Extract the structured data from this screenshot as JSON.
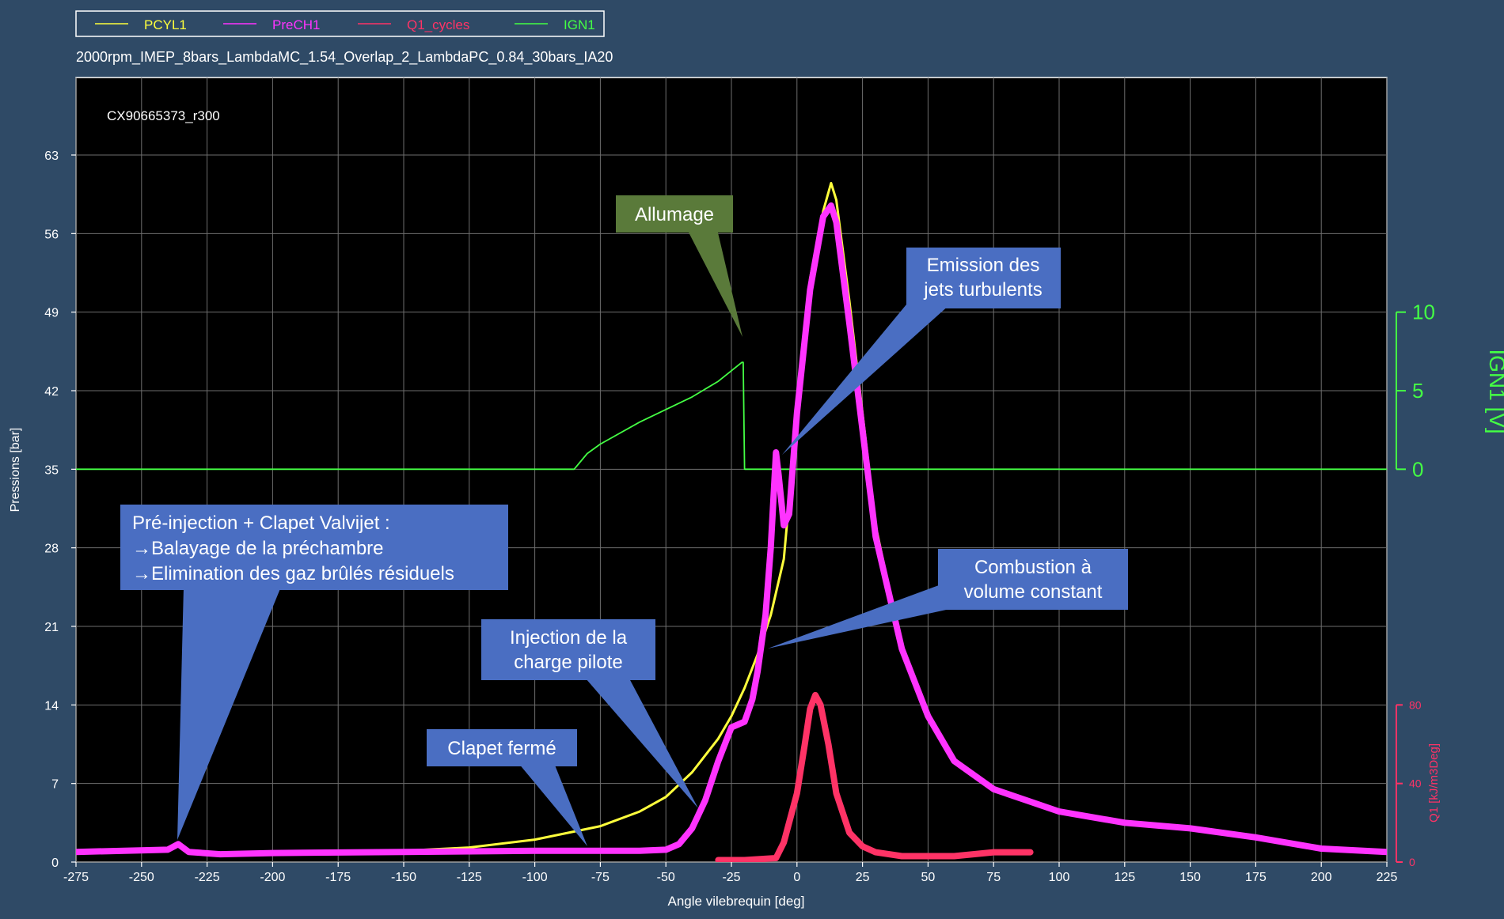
{
  "legend": [
    {
      "name": "PCYL1",
      "color": "#ffff3c"
    },
    {
      "name": "PreCH1",
      "color": "#ff33ff"
    },
    {
      "name": "Q1_cycles",
      "color": "#ff3366"
    },
    {
      "name": "IGN1",
      "color": "#44ff44"
    }
  ],
  "subtitle": "2000rpm_IMEP_8bars_LambdaMC_1.54_Overlap_2_LambdaPC_0.84_30bars_IA20",
  "run_id": "CX90665373_r300",
  "colors": {
    "background": "#2f4a66",
    "plot_bg": "#000000",
    "grid": "#6e6e6e",
    "pcyl": "#ffff3c",
    "prech": "#ff33ff",
    "q1": "#ff3366",
    "ign": "#44ff44",
    "callout_blue": "#4a6ec2",
    "callout_green": "#5a7a3a"
  },
  "annotations": {
    "allumage": "Allumage",
    "jets_line1": "Emission des",
    "jets_line2": "jets turbulents",
    "combustion_line1": "Combustion à",
    "combustion_line2": "volume constant",
    "pilote_line1": "Injection de la",
    "pilote_line2": "charge pilote",
    "clapet": "Clapet fermé",
    "preinj_line1": "Pré-injection + Clapet Valvijet :",
    "preinj_line2": "→Balayage de la préchambre",
    "preinj_line3": "→Elimination des gaz brûlés résiduels"
  },
  "chart_data": {
    "type": "line",
    "xlabel": "Angle vilebrequin [deg]",
    "ylabel": "Pressions [bar]",
    "xlim": [
      -275,
      225
    ],
    "ylim": [
      0,
      70
    ],
    "xticks": [
      -275,
      -250,
      -225,
      -200,
      -175,
      -150,
      -125,
      -100,
      -75,
      -50,
      -25,
      0,
      25,
      50,
      75,
      100,
      125,
      150,
      175,
      200,
      225
    ],
    "yticks": [
      0,
      7,
      14,
      21,
      28,
      35,
      42,
      49,
      56,
      63
    ],
    "y2": {
      "label": "IGN1 [V]",
      "ticks": [
        0,
        5,
        10
      ],
      "range_bar": [
        35,
        49
      ]
    },
    "y3": {
      "label": "Q1 [kJ/m3Deg]",
      "ticks": [
        0,
        40,
        80
      ],
      "range_bar": [
        0,
        14
      ]
    },
    "grid": true,
    "legend_position": "top-left",
    "series": [
      {
        "name": "PCYL1",
        "axis": "pressure",
        "x": [
          -275,
          -240,
          -236,
          -230,
          -220,
          -200,
          -150,
          -125,
          -100,
          -75,
          -60,
          -50,
          -40,
          -30,
          -25,
          -20,
          -15,
          -10,
          -5,
          0,
          5,
          10,
          13,
          15,
          20,
          25,
          30,
          40,
          50,
          60,
          75,
          100,
          125,
          150,
          175,
          200,
          225
        ],
        "y": [
          1.0,
          1.0,
          1.5,
          0.9,
          0.7,
          0.8,
          1.0,
          1.3,
          2.0,
          3.2,
          4.5,
          5.8,
          8.0,
          11.0,
          13.0,
          15.5,
          18.5,
          22.0,
          27.0,
          40.0,
          52.0,
          58.0,
          60.5,
          59.0,
          50.0,
          40.0,
          30.0,
          19.0,
          13.0,
          9.0,
          6.5,
          4.5,
          3.5,
          3.0,
          2.2,
          1.2,
          0.9
        ]
      },
      {
        "name": "PreCH1",
        "axis": "pressure",
        "x": [
          -275,
          -240,
          -236,
          -232,
          -220,
          -200,
          -150,
          -100,
          -75,
          -60,
          -50,
          -45,
          -40,
          -35,
          -30,
          -25,
          -20,
          -17,
          -15,
          -12,
          -10,
          -8,
          -7,
          -5,
          -3,
          0,
          5,
          10,
          13,
          15,
          20,
          25,
          30,
          40,
          50,
          60,
          75,
          100,
          125,
          150,
          175,
          200,
          225
        ],
        "y": [
          0.9,
          1.1,
          1.6,
          0.9,
          0.7,
          0.8,
          0.9,
          1.0,
          1.0,
          1.0,
          1.1,
          1.6,
          3.0,
          5.5,
          9.0,
          12.0,
          12.5,
          14.5,
          17.0,
          22.0,
          28.0,
          36.5,
          34.5,
          30.0,
          31.0,
          40.0,
          51.0,
          57.5,
          58.5,
          57.0,
          48.0,
          38.5,
          29.0,
          19.0,
          13.0,
          9.0,
          6.5,
          4.5,
          3.5,
          3.0,
          2.2,
          1.2,
          0.9
        ]
      },
      {
        "name": "Q1_cycles",
        "axis": "q1",
        "unit": "kJ/m3Deg",
        "x": [
          -30,
          -20,
          -8,
          -5,
          0,
          3,
          5,
          7,
          9,
          12,
          15,
          20,
          25,
          30,
          40,
          60,
          75,
          89
        ],
        "y": [
          1,
          1,
          2,
          10,
          35,
          60,
          78,
          85,
          80,
          60,
          35,
          15,
          8,
          5,
          3,
          3,
          5,
          5
        ]
      },
      {
        "name": "IGN1",
        "axis": "ign",
        "unit": "V",
        "x": [
          -275,
          -85,
          -80,
          -75,
          -60,
          -40,
          -30,
          -21,
          -20.5,
          -20,
          225
        ],
        "y": [
          0,
          0,
          1.0,
          1.6,
          3.0,
          4.6,
          5.6,
          6.8,
          6.8,
          0,
          0
        ]
      }
    ]
  }
}
